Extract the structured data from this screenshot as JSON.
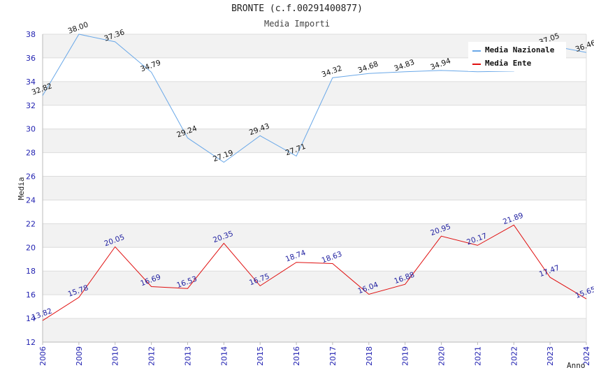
{
  "chart_data": {
    "type": "line",
    "title": "BRONTE (c.f.00291400877)",
    "subtitle": "Media Importi",
    "xlabel": "Anno",
    "ylabel": "Media",
    "ylim": [
      12,
      38
    ],
    "yticks": [
      12,
      14,
      16,
      18,
      20,
      22,
      24,
      26,
      28,
      30,
      32,
      34,
      36,
      38
    ],
    "categories": [
      "2006",
      "2009",
      "2010",
      "2012",
      "2013",
      "2014",
      "2015",
      "2016",
      "2017",
      "2018",
      "2019",
      "2020",
      "2021",
      "2022",
      "2023",
      "2024"
    ],
    "series": [
      {
        "name": "Media Nazionale",
        "color": "#6aa8e8",
        "label_color": "#111111",
        "values": [
          32.82,
          38.0,
          37.36,
          34.79,
          29.24,
          27.19,
          29.43,
          27.71,
          34.32,
          34.68,
          34.83,
          34.94,
          34.83,
          34.88,
          37.05,
          36.46
        ],
        "labels": [
          "32.82",
          "38.00",
          "37.36",
          "34.79",
          "29.24",
          "27.19",
          "29.43",
          "27.71",
          "34.32",
          "34.68",
          "34.83",
          "34.94",
          "",
          "",
          "37.05",
          "36.46"
        ]
      },
      {
        "name": "Media Ente",
        "color": "#e01010",
        "label_color": "#1f1fa0",
        "values": [
          13.82,
          15.78,
          20.05,
          16.69,
          16.53,
          20.35,
          16.75,
          18.74,
          18.63,
          16.04,
          16.88,
          20.95,
          20.17,
          21.89,
          17.47,
          15.65
        ],
        "labels": [
          "13.82",
          "15.78",
          "20.05",
          "16.69",
          "16.53",
          "20.35",
          "16.75",
          "18.74",
          "18.63",
          "16.04",
          "16.88",
          "20.95",
          "20.17",
          "21.89",
          "17.47",
          "15.65"
        ]
      }
    ],
    "grid": true,
    "legend_position": "top-right"
  }
}
